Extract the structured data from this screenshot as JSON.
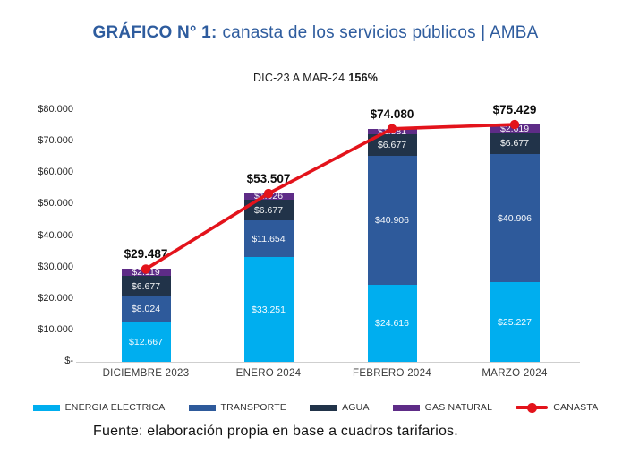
{
  "header": {
    "title_bold": "GRÁFICO N° 1:",
    "title_rest": "canasta de los servicios públicos | AMBA"
  },
  "colors": {
    "title_blue": "#2e5c9e",
    "accent_red": "#e3131b",
    "axis_gray": "#cfcfcf"
  },
  "chart_data": {
    "type": "bar",
    "variant": "stacked-bars-with-line-overlay",
    "title": "GRÁFICO N° 1: canasta de los servicios públicos | AMBA",
    "subtitle": {
      "label": "DIC-23 A MAR-24",
      "value": "156%"
    },
    "categories": [
      "DICIEMBRE 2023",
      "ENERO 2024",
      "FEBRERO 2024",
      "MARZO 2024"
    ],
    "series": [
      {
        "name": "ENERGIA ELECTRICA",
        "color": "#00aeef",
        "values": [
          12667,
          33251,
          24616,
          25227
        ]
      },
      {
        "name": "TRANSPORTE",
        "color": "#2e5a9b",
        "values": [
          8024,
          11654,
          40906,
          40906
        ]
      },
      {
        "name": "AGUA",
        "color": "#213349",
        "values": [
          6677,
          6677,
          6677,
          6677
        ]
      },
      {
        "name": "GAS NATURAL",
        "color": "#5e2c87",
        "values": [
          2119,
          1926,
          1881,
          2619
        ]
      }
    ],
    "line": {
      "name": "CANASTA",
      "color": "#e3131b",
      "values": [
        29487,
        53507,
        74080,
        75429
      ]
    },
    "y_ticks": [
      "$80.000",
      "$70.000",
      "$60.000",
      "$50.000",
      "$40.000",
      "$30.000",
      "$20.000",
      "$10.000",
      "$-"
    ],
    "ylim": [
      0,
      80000
    ],
    "grid": false,
    "legend_position": "bottom",
    "source": "Fuente: elaboración propia en base a cuadros tarifarios."
  }
}
